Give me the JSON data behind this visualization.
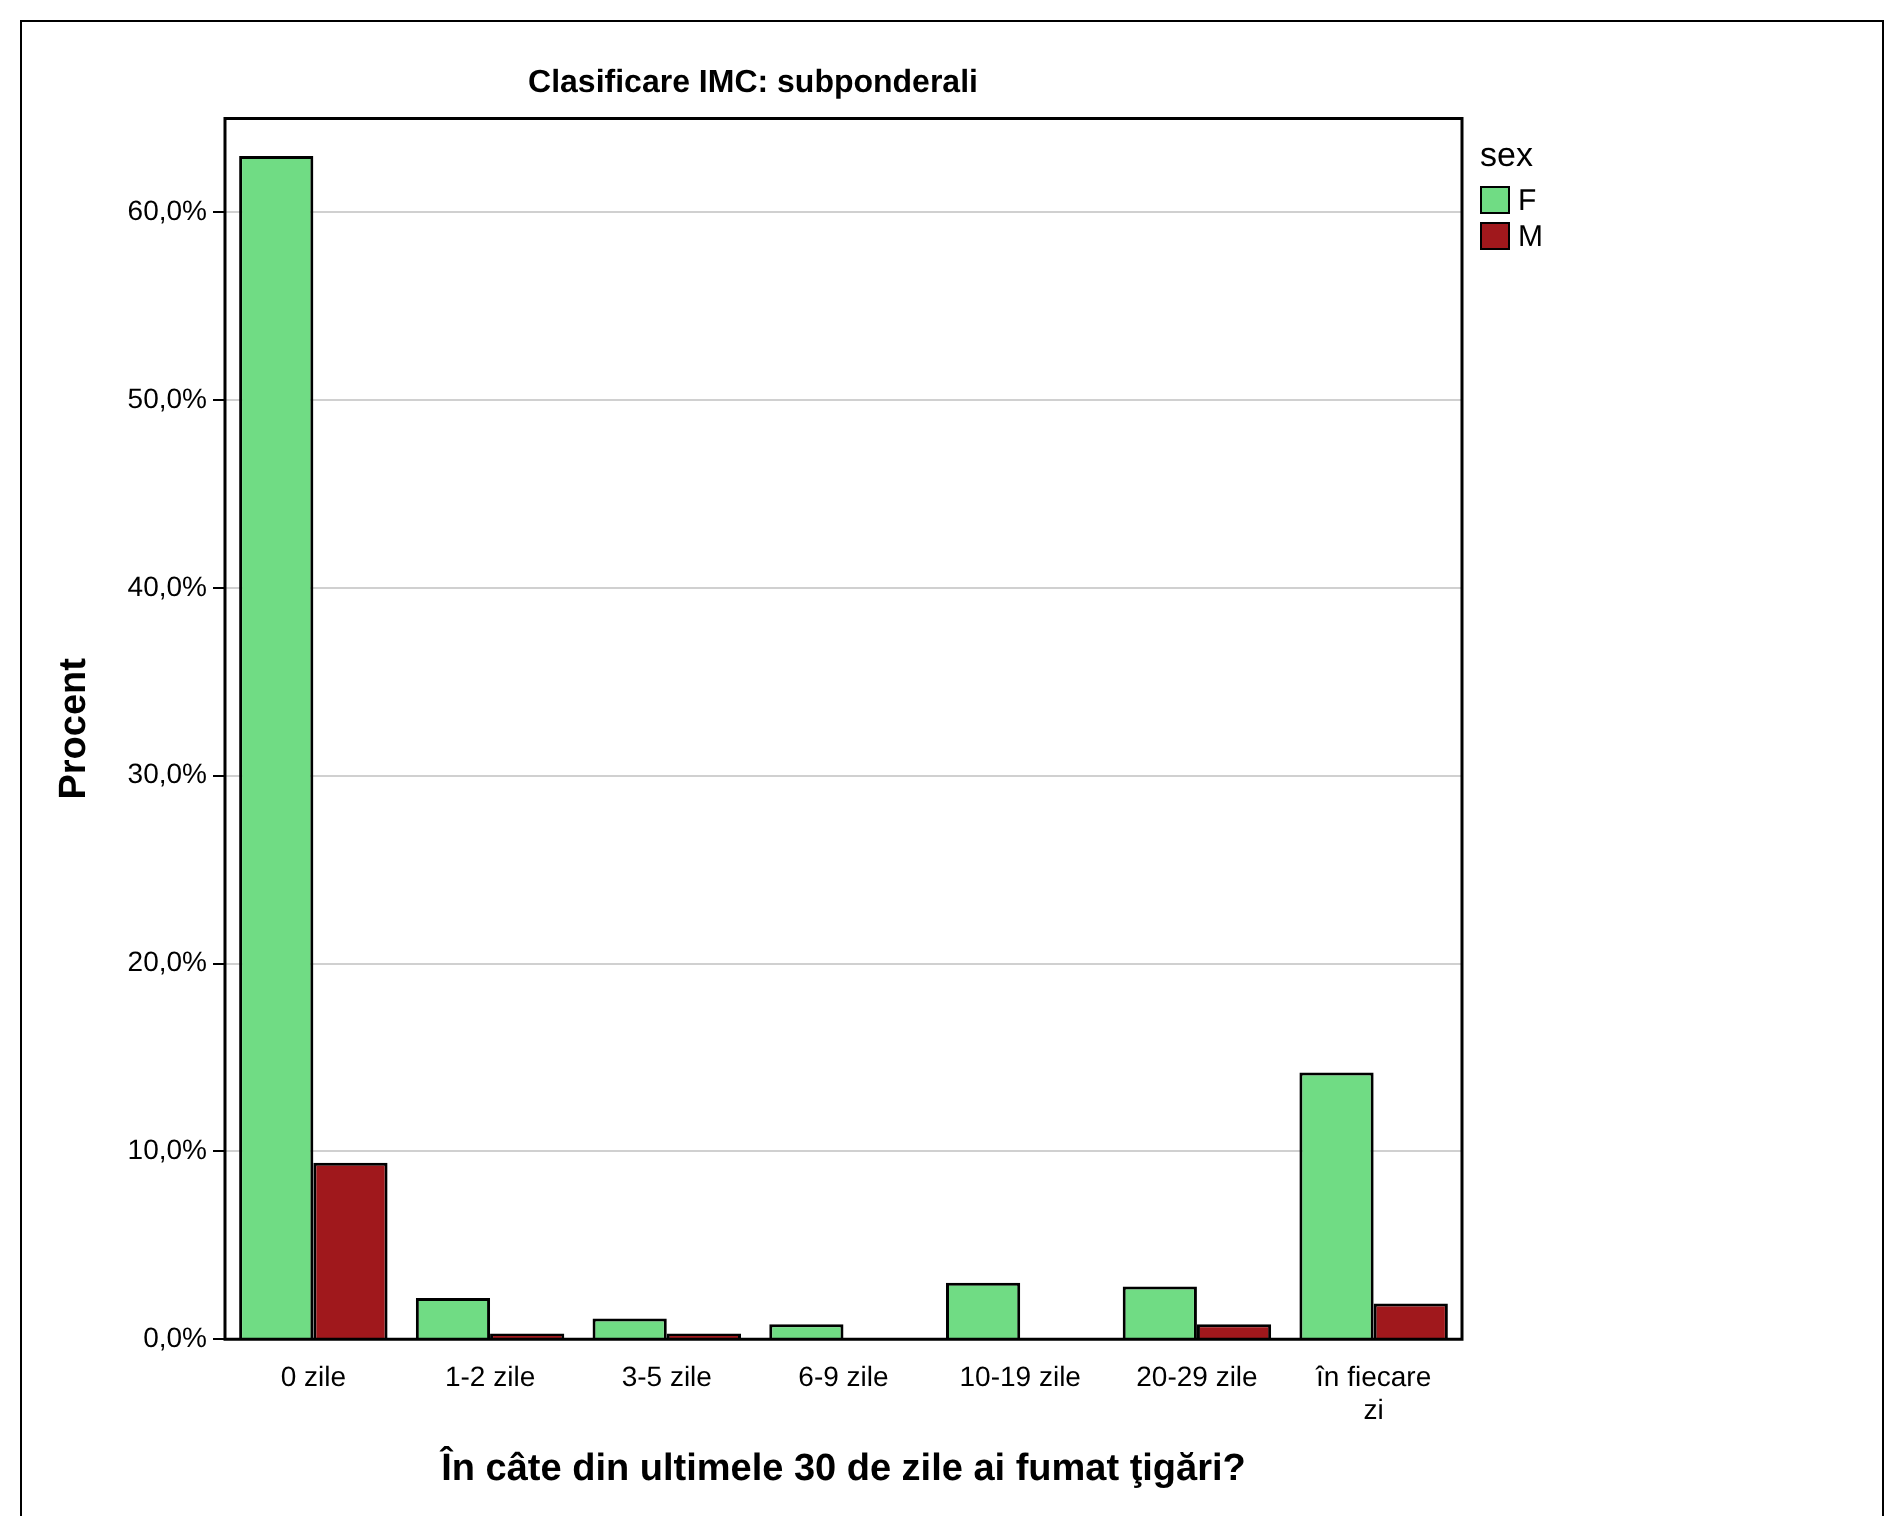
{
  "chart_data": {
    "type": "bar",
    "title": "Clasificare IMC: subponderali",
    "xlabel": "În câte din ultimele 30 de zile ai fumat ţigări?",
    "ylabel": "Procent",
    "legend_title": "sex",
    "categories": [
      "0 zile",
      "1-2 zile",
      "3-5 zile",
      "6-9 zile",
      "10-19 zile",
      "20-29 zile",
      "în fiecare zi"
    ],
    "series": [
      {
        "name": "F",
        "color": "#70dc84",
        "values": [
          63.0,
          2.2,
          1.1,
          0.8,
          3.0,
          2.8,
          14.2
        ]
      },
      {
        "name": "M",
        "color": "#a0181c",
        "values": [
          9.4,
          0.3,
          0.3,
          0,
          0,
          0.8,
          1.9
        ]
      }
    ],
    "ylim": [
      0,
      65
    ],
    "yticks": [
      {
        "value": 0,
        "label": "0,0%"
      },
      {
        "value": 10,
        "label": "10,0%"
      },
      {
        "value": 20,
        "label": "20,0%"
      },
      {
        "value": 30,
        "label": "30,0%"
      },
      {
        "value": 40,
        "label": "40,0%"
      },
      {
        "value": 50,
        "label": "50,0%"
      },
      {
        "value": 60,
        "label": "60,0%"
      }
    ],
    "grid": "y",
    "legend": "top right"
  }
}
